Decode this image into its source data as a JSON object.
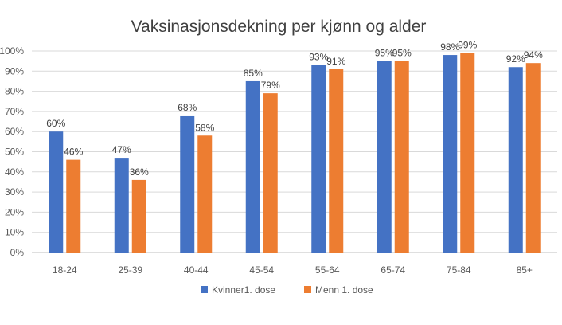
{
  "chart_data": {
    "type": "bar",
    "title": "Vaksinasjonsdekning per kjønn og alder",
    "xlabel": "",
    "ylabel": "",
    "ylim": [
      0,
      100
    ],
    "y_ticks": [
      "0%",
      "10%",
      "20%",
      "30%",
      "40%",
      "50%",
      "60%",
      "70%",
      "80%",
      "90%",
      "100%"
    ],
    "categories": [
      "18-24",
      "25-39",
      "40-44",
      "45-54",
      "55-64",
      "65-74",
      "75-84",
      "85+"
    ],
    "series": [
      {
        "name": "Kvinner1. dose",
        "color": "#4472c4",
        "values": [
          60,
          47,
          68,
          85,
          93,
          95,
          98,
          92
        ]
      },
      {
        "name": "Menn 1. dose",
        "color": "#ed7d31",
        "values": [
          46,
          36,
          58,
          79,
          91,
          95,
          99,
          94
        ]
      }
    ],
    "value_suffix": "%",
    "grid": true,
    "legend_position": "bottom"
  }
}
